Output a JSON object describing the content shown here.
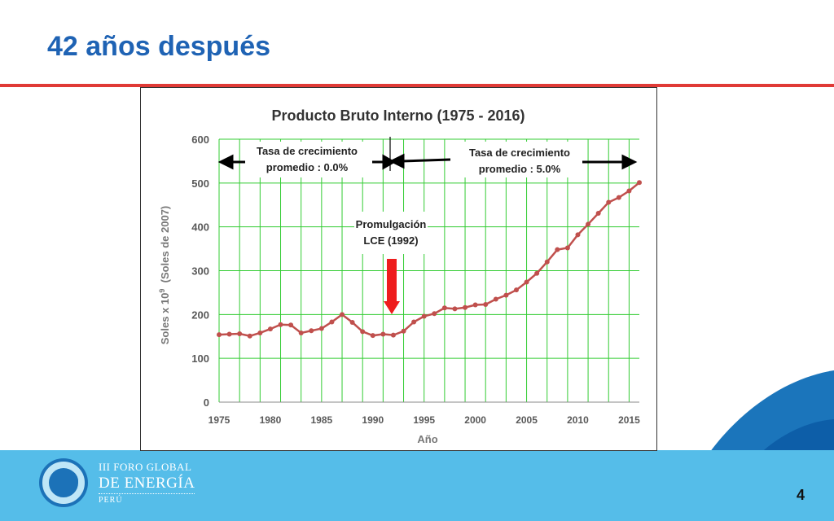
{
  "slide": {
    "title": "42 años después",
    "page_number": "4"
  },
  "logo": {
    "line1": "III FORO GLOBAL",
    "line2": "DE ENERGÍA",
    "line3": "PERÚ"
  },
  "colors": {
    "title": "#1f63b4",
    "rule": "#e03a36",
    "footer": "#55bde9",
    "series_line": "#c0504d",
    "gridline": "#33cc33",
    "arrow_red": "#ee1c1c"
  },
  "annotations": {
    "left_rate_line1": "Tasa de crecimiento",
    "left_rate_line2": "promedio : 0.0%",
    "right_rate_line1": "Tasa de crecimiento",
    "right_rate_line2": "promedio : 5.0%",
    "law_line1": "Promulgación",
    "law_line2": "LCE (1992)"
  },
  "chart_data": {
    "type": "line",
    "title": "Producto Bruto Interno (1975 - 2016)",
    "title_prefix": "P",
    "xlabel": "Año",
    "ylabel": "Soles x 10",
    "ylabel_sup": "9",
    "ylabel_suffix": "(Soles de 2007)",
    "xlim": [
      1975,
      2016
    ],
    "ylim": [
      0,
      600
    ],
    "xticks": [
      1975,
      1980,
      1985,
      1990,
      1995,
      2000,
      2005,
      2010,
      2015
    ],
    "yticks": [
      0,
      100,
      200,
      300,
      400,
      500,
      600
    ],
    "grid": true,
    "x": [
      1975,
      1976,
      1977,
      1978,
      1979,
      1980,
      1981,
      1982,
      1983,
      1984,
      1985,
      1986,
      1987,
      1988,
      1989,
      1990,
      1991,
      1992,
      1993,
      1994,
      1995,
      1996,
      1997,
      1998,
      1999,
      2000,
      2001,
      2002,
      2003,
      2004,
      2005,
      2006,
      2007,
      2008,
      2009,
      2010,
      2011,
      2012,
      2013,
      2014,
      2015,
      2016
    ],
    "values": [
      154,
      155,
      156,
      151,
      158,
      167,
      177,
      176,
      158,
      163,
      168,
      183,
      200,
      182,
      161,
      152,
      155,
      153,
      162,
      183,
      196,
      202,
      215,
      213,
      216,
      222,
      223,
      235,
      244,
      256,
      274,
      294,
      320,
      348,
      352,
      382,
      406,
      431,
      456,
      467,
      482,
      501
    ]
  }
}
